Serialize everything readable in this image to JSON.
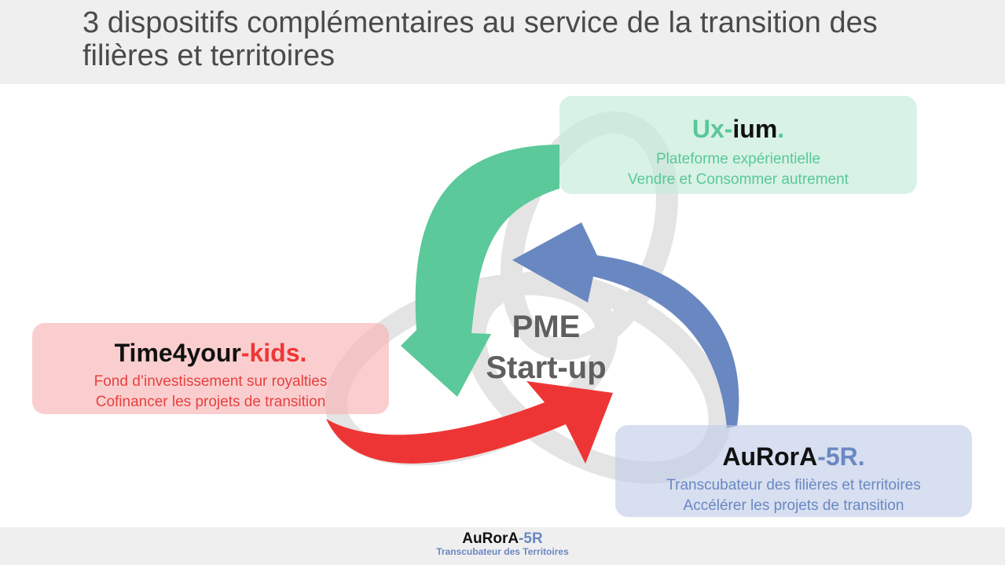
{
  "header": {
    "title": "3 dispositifs complémentaires au service de la transition des filières et territoires"
  },
  "center": {
    "line1": "PME",
    "line2": "Start-up"
  },
  "boxes": {
    "uxium": {
      "name_a": "Ux-",
      "name_b": "ium",
      "name_dot": ".",
      "line1": "Plateforme expérientielle",
      "line2": "Vendre et Consommer autrement"
    },
    "t4k": {
      "name_a": "Time4your",
      "name_b": "-kids",
      "name_dot": ".",
      "line1": "Fond d’investissement sur royalties",
      "line2": "Cofinancer les projets de transition"
    },
    "aurora": {
      "name_a": "AuRorA",
      "name_b": "-5R",
      "name_dot": ".",
      "line1": "Transcubateur des filières et territoires",
      "line2": "Accélérer les projets de transition"
    }
  },
  "footer": {
    "logo_a": "AuRorA",
    "logo_b": "-5R",
    "subtitle": "Transcubateur des Territoires"
  },
  "colors": {
    "green": "#58c898",
    "red": "#ee3636",
    "blue": "#6a88c2",
    "ring": "#e3e3e3"
  },
  "icons": {
    "cycle": "circular-arrows-icon"
  }
}
